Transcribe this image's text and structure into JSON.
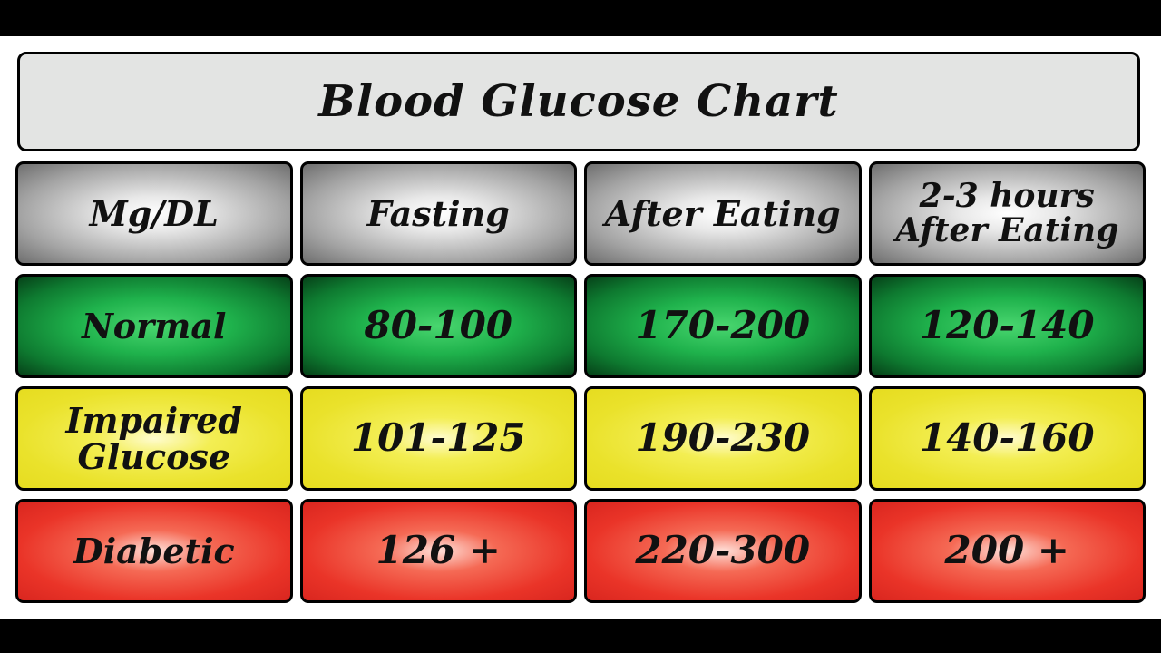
{
  "title": "Blood Glucose Chart",
  "colors": {
    "header": "#a3a3a3",
    "normal": "#1fb24c",
    "impaired": "#eae22b",
    "diabetic": "#ea3428"
  },
  "chart_data": {
    "type": "table",
    "title": "Blood Glucose Chart",
    "columns": [
      "Mg/DL",
      "Fasting",
      "After Eating",
      "2-3 hours After Eating"
    ],
    "header": {
      "col0": "Mg/DL",
      "col1": "Fasting",
      "col2": "After Eating",
      "col3_line1": "2-3 hours",
      "col3_line2": "After Eating"
    },
    "rows": [
      {
        "label": "Normal",
        "fasting": "80-100",
        "after_eating": "170-200",
        "two_three_hours": "120-140"
      },
      {
        "label_line1": "Impaired",
        "label_line2": "Glucose",
        "fasting": "101-125",
        "after_eating": "190-230",
        "two_three_hours": "140-160"
      },
      {
        "label": "Diabetic",
        "fasting": "126 +",
        "after_eating": "220-300",
        "two_three_hours": "200 +"
      }
    ]
  }
}
